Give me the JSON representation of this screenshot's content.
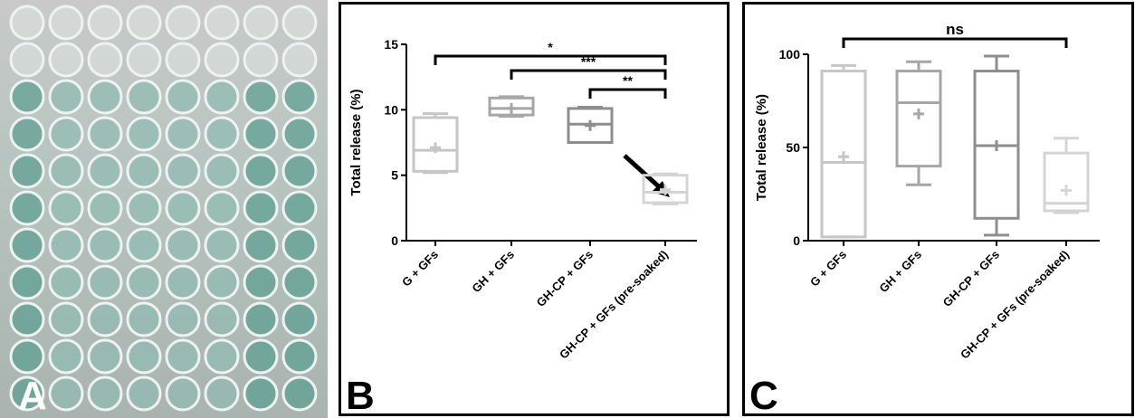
{
  "panel_labels": [
    "A",
    "B",
    "C"
  ],
  "chart_data": [
    {
      "type": "box",
      "y_label": "Total release (%)",
      "categories": [
        "G + GFs",
        "GH + GFs",
        "GH-CP + GFs",
        "GH-CP + GFs (pre-soaked)"
      ],
      "min": [
        5.2,
        9.5,
        7.5,
        2.8
      ],
      "q1": [
        5.3,
        9.6,
        7.5,
        2.9
      ],
      "median": [
        6.9,
        10.1,
        8.9,
        3.7
      ],
      "q3": [
        9.4,
        10.9,
        10.1,
        5.0
      ],
      "max": [
        9.7,
        11.0,
        10.2,
        5.1
      ],
      "mean": [
        7.1,
        10.1,
        8.8,
        3.9
      ],
      "colors": [
        "#c6c6c6",
        "#a6a6a6",
        "#8e8e8e",
        "#d4d4d4"
      ],
      "ylim": [
        0,
        15
      ],
      "yticks": [
        0,
        5,
        10,
        15
      ],
      "brackets": [
        {
          "label": "*",
          "between": [
            "G + GFs",
            "GH-CP + GFs (pre-soaked)"
          ]
        },
        {
          "label": "***",
          "between": [
            "GH + GFs",
            "GH-CP + GFs (pre-soaked)"
          ]
        },
        {
          "label": "**",
          "between": [
            "GH-CP + GFs",
            "GH-CP + GFs (pre-soaked)"
          ]
        }
      ]
    },
    {
      "type": "box",
      "y_label": "Total release (%)",
      "categories": [
        "G + GFs",
        "GH + GFs",
        "GH-CP + GFs",
        "GH-CP + GFs (pre-soaked)"
      ],
      "min": [
        2,
        30,
        3,
        15
      ],
      "q1": [
        2,
        40,
        12,
        16
      ],
      "median": [
        42,
        74,
        51,
        20
      ],
      "q3": [
        91,
        91,
        91,
        47
      ],
      "max": [
        94,
        96,
        99,
        55
      ],
      "mean": [
        45,
        68,
        51,
        27
      ],
      "colors": [
        "#c6c6c6",
        "#a6a6a6",
        "#8e8e8e",
        "#d4d4d4"
      ],
      "ylim": [
        0,
        100
      ],
      "yticks": [
        0,
        50,
        100
      ],
      "brackets": [
        {
          "label": "ns",
          "between": [
            "G + GFs",
            "GH-CP + GFs (pre-soaked)"
          ]
        }
      ]
    }
  ]
}
